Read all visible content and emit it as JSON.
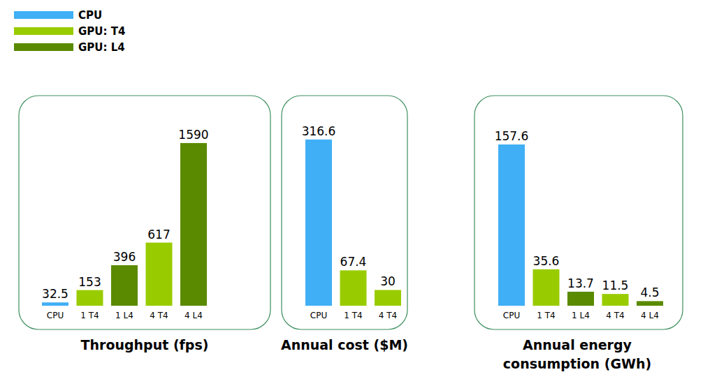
{
  "chart_data": [
    {
      "type": "bar",
      "title": "Throughput (fps)",
      "categories": [
        "CPU",
        "1 T4",
        "1 L4",
        "4 T4",
        "4 L4"
      ],
      "series": [
        {
          "name": "CPU",
          "color": "#40aff5",
          "values": [
            32.5,
            null,
            null,
            null,
            null
          ]
        },
        {
          "name": "GPU: T4",
          "color": "#99cc00",
          "values": [
            null,
            153,
            null,
            617,
            null
          ]
        },
        {
          "name": "GPU: L4",
          "color": "#5a8a00",
          "values": [
            null,
            null,
            396,
            null,
            1590
          ]
        }
      ],
      "ylim": [
        0,
        1760
      ],
      "legend": "top-left",
      "data_labels": true,
      "tick_labels": "x"
    },
    {
      "type": "bar",
      "title": "Annual cost ($M)",
      "categories": [
        "CPU",
        "1 T4",
        "4 T4"
      ],
      "values": [
        316.6,
        67.4,
        30
      ],
      "colors": [
        "#40aff5",
        "#99cc00",
        "#99cc00"
      ],
      "ylim": [
        0,
        343
      ],
      "data_labels": true,
      "tick_labels": "x"
    },
    {
      "type": "bar",
      "title": "Annual energy\nconsumption (GWh)",
      "categories": [
        "CPU",
        "1 T4",
        "1 L4",
        "4 T4",
        "4 L4"
      ],
      "values": [
        157.6,
        35.6,
        13.7,
        11.5,
        4.5
      ],
      "colors": [
        "#40aff5",
        "#99cc00",
        "#5a8a00",
        "#99cc00",
        "#5a8a00"
      ],
      "ylim": [
        0,
        176
      ],
      "data_labels": true,
      "tick_labels": "x"
    }
  ]
}
